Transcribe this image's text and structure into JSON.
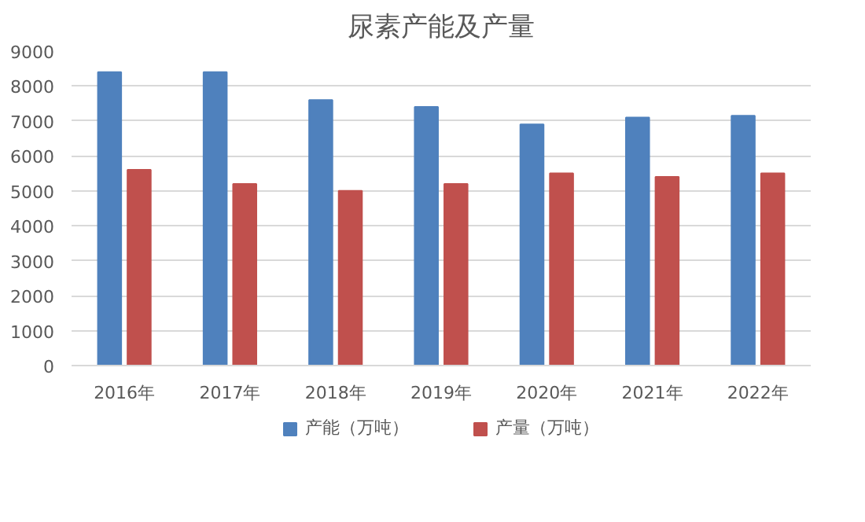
{
  "chart_data": {
    "type": "bar",
    "title": "尿素产能及产量",
    "categories": [
      "2016年",
      "2017年",
      "2018年",
      "2019年",
      "2020年",
      "2021年",
      "2022年"
    ],
    "series": [
      {
        "name": "产能（万吨）",
        "color": "#4f81bd",
        "values": [
          8400,
          8400,
          7600,
          7400,
          6900,
          7100,
          7150
        ]
      },
      {
        "name": "产量（万吨）",
        "color": "#c0504d",
        "values": [
          5600,
          5200,
          5000,
          5200,
          5500,
          5400,
          5500
        ]
      }
    ],
    "ylim": [
      0,
      9000
    ],
    "yticks": [
      0,
      1000,
      2000,
      3000,
      4000,
      5000,
      6000,
      7000,
      8000,
      9000
    ],
    "grid": "y",
    "legend": "bottom"
  }
}
